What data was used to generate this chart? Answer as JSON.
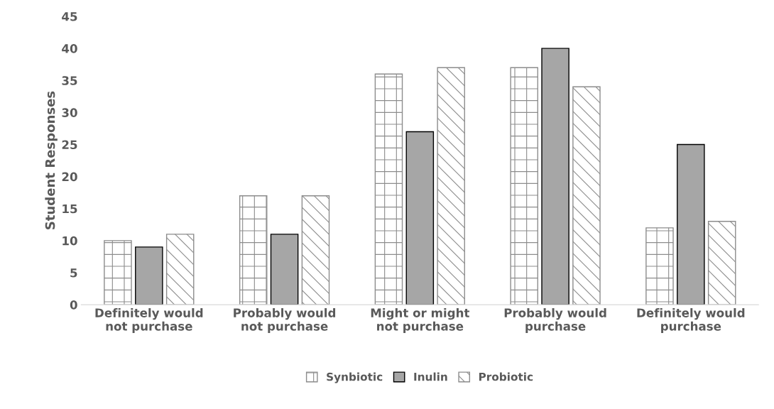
{
  "chart_data": {
    "type": "bar",
    "ylabel": "Student Responses",
    "categories": [
      "Definitely would\nnot purchase",
      "Probably would\nnot purchase",
      "Might or might\nnot purchase",
      "Probably would\npurchase",
      "Definitely would\npurchase"
    ],
    "series": [
      {
        "name": "Synbiotic",
        "color": "#8c8c8c",
        "values": [
          10,
          17,
          36,
          37,
          12
        ]
      },
      {
        "name": "Inulin",
        "color": "#a6a6a6",
        "values": [
          9,
          11,
          27,
          40,
          25
        ]
      },
      {
        "name": "Probiotic",
        "color": "#8c8c8c",
        "values": [
          11,
          17,
          37,
          34,
          13
        ]
      }
    ],
    "ylim": [
      0,
      45
    ],
    "yticks": [
      0,
      5,
      10,
      15,
      20,
      25,
      30,
      35,
      40,
      45
    ],
    "grid": false,
    "legend": "bottom"
  }
}
